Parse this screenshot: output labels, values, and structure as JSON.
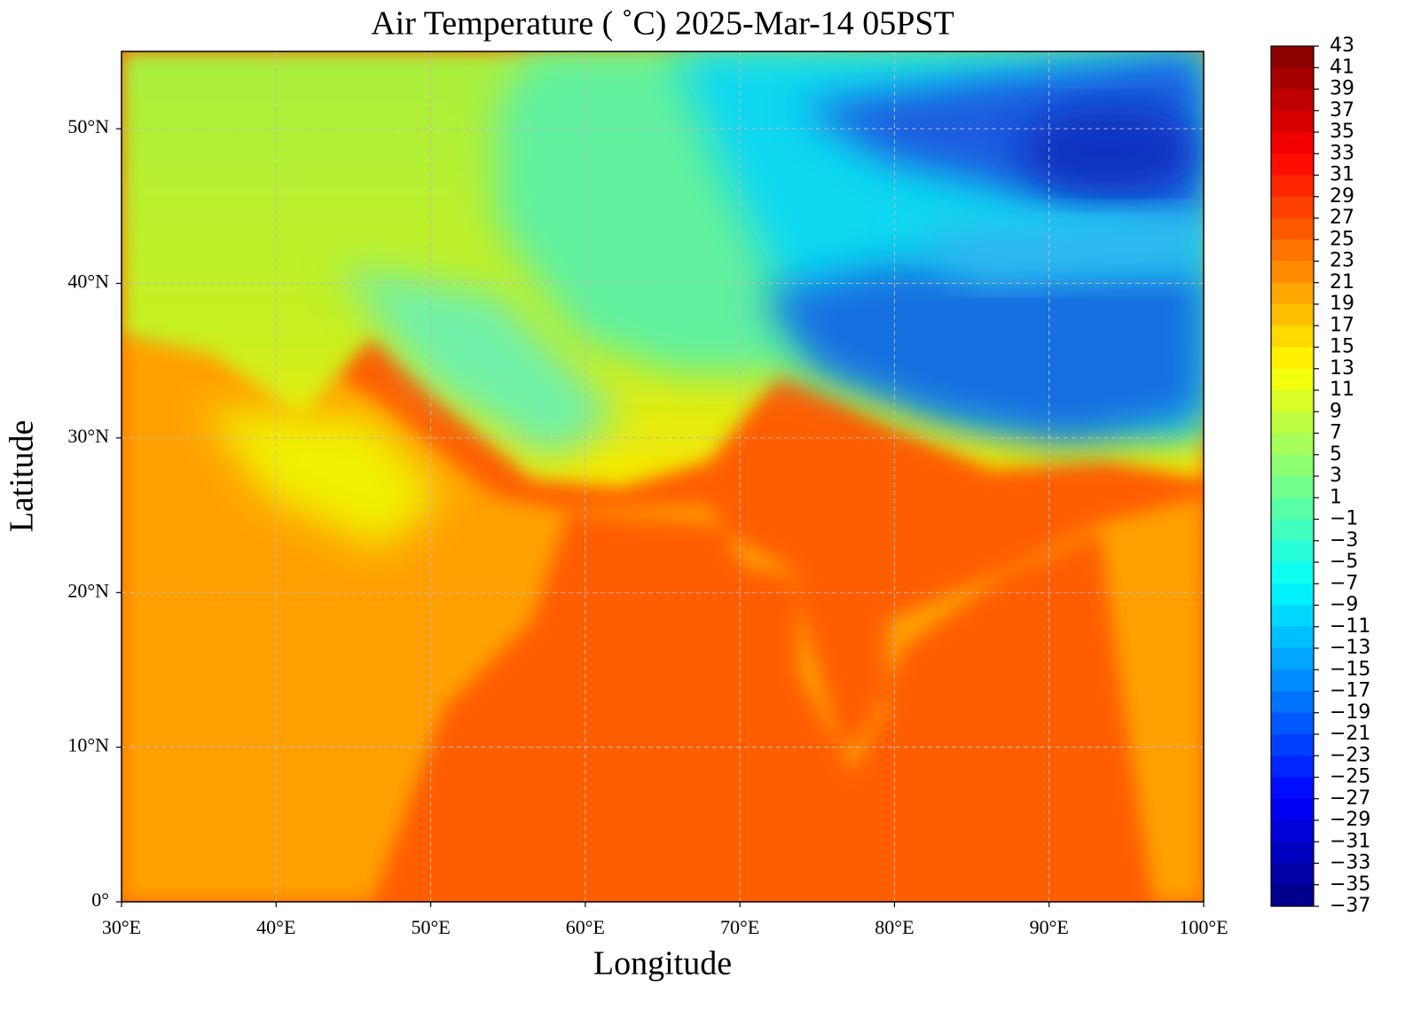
{
  "chart_data": {
    "type": "map",
    "title": "Air Temperature ( ˚C)  2025-Mar-14 05PST",
    "x_label": "Longitude",
    "y_label": "Latitude",
    "xlim": [
      30,
      100
    ],
    "ylim": [
      0,
      55
    ],
    "xticks": [
      {
        "value": 30,
        "label": "30°E"
      },
      {
        "value": 40,
        "label": "40°E"
      },
      {
        "value": 50,
        "label": "50°E"
      },
      {
        "value": 60,
        "label": "60°E"
      },
      {
        "value": 70,
        "label": "70°E"
      },
      {
        "value": 80,
        "label": "80°E"
      },
      {
        "value": 90,
        "label": "90°E"
      },
      {
        "value": 100,
        "label": "100°E"
      }
    ],
    "yticks": [
      {
        "value": 0,
        "label": "0°"
      },
      {
        "value": 10,
        "label": "10°N"
      },
      {
        "value": 20,
        "label": "20°N"
      },
      {
        "value": 30,
        "label": "30°N"
      },
      {
        "value": 40,
        "label": "40°N"
      },
      {
        "value": 50,
        "label": "50°N"
      }
    ],
    "grid": true,
    "colorbar": {
      "clim": [
        -37,
        43
      ],
      "colormap": "jet",
      "ticks": [
        43,
        41,
        39,
        37,
        35,
        33,
        31,
        29,
        27,
        25,
        23,
        21,
        19,
        17,
        15,
        13,
        11,
        9,
        7,
        5,
        3,
        1,
        {
          "value": -1,
          "label": "−1"
        },
        {
          "value": -3,
          "label": "−3"
        },
        {
          "value": -5,
          "label": "−5"
        },
        {
          "value": -7,
          "label": "−7"
        },
        {
          "value": -9,
          "label": "−9"
        },
        {
          "value": -11,
          "label": "−11"
        },
        {
          "value": -13,
          "label": "−13"
        },
        {
          "value": -15,
          "label": "−15"
        },
        {
          "value": -17,
          "label": "−17"
        },
        {
          "value": -19,
          "label": "−19"
        },
        {
          "value": -21,
          "label": "−21"
        },
        {
          "value": -23,
          "label": "−23"
        },
        {
          "value": -25,
          "label": "−25"
        },
        {
          "value": -27,
          "label": "−27"
        },
        {
          "value": -29,
          "label": "−29"
        },
        {
          "value": -31,
          "label": "−31"
        },
        {
          "value": -33,
          "label": "−33"
        },
        {
          "value": -35,
          "label": "−35"
        },
        {
          "value": -37,
          "label": "−37"
        }
      ]
    }
  }
}
